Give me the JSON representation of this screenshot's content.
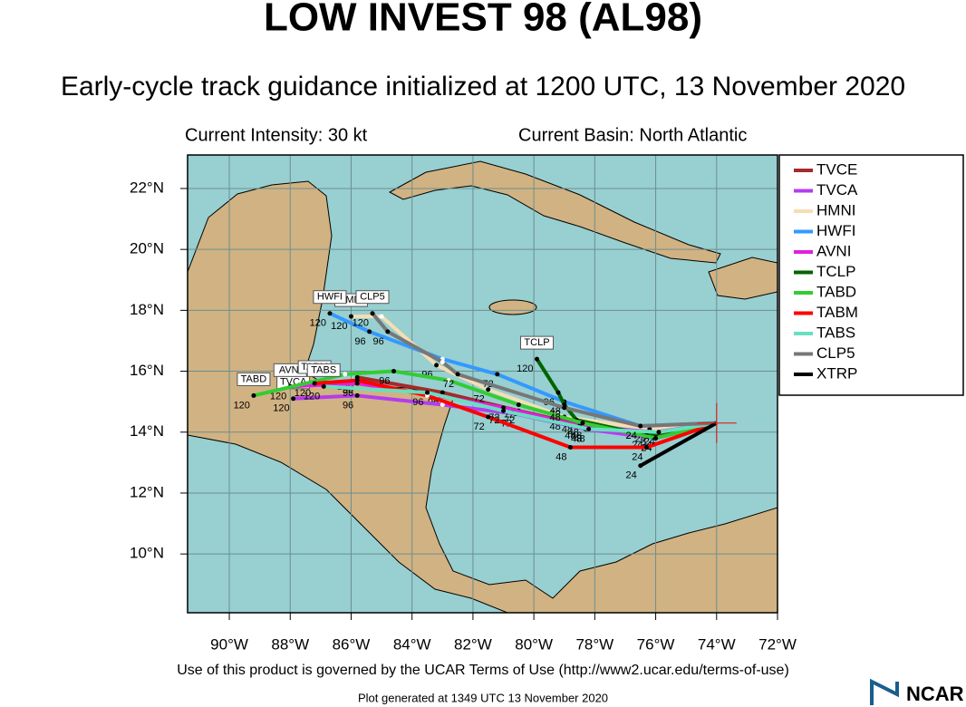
{
  "chart_data": {
    "type": "map",
    "title": "LOW INVEST 98 (AL98)",
    "subtitle": "Early-cycle track guidance initialized at 1200 UTC, 13 November 2020",
    "intensity_label": "Current Intensity: 30 kt",
    "basin_label": "Current Basin: North Atlantic",
    "footer": "Use of this product is governed by the UCAR Terms of Use (http://www2.ucar.edu/terms-of-use)",
    "generated": "Plot generated at 1349 UTC   13 November 2020",
    "logo": "NCAR",
    "xlim": [
      -91.37,
      -72
    ],
    "ylim": [
      8.07,
      23.1
    ],
    "xticks": [
      {
        "value": -90,
        "label": "90°W"
      },
      {
        "value": -88,
        "label": "88°W"
      },
      {
        "value": -86,
        "label": "86°W"
      },
      {
        "value": -84,
        "label": "84°W"
      },
      {
        "value": -82,
        "label": "82°W"
      },
      {
        "value": -80,
        "label": "80°W"
      },
      {
        "value": -78,
        "label": "78°W"
      },
      {
        "value": -76,
        "label": "76°W"
      },
      {
        "value": -74,
        "label": "74°W"
      },
      {
        "value": -72,
        "label": "72°W"
      }
    ],
    "yticks": [
      {
        "value": 10,
        "label": "10°N"
      },
      {
        "value": 12,
        "label": "12°N"
      },
      {
        "value": 14,
        "label": "14°N"
      },
      {
        "value": 16,
        "label": "16°N"
      },
      {
        "value": 18,
        "label": "18°N"
      },
      {
        "value": 20,
        "label": "20°N"
      },
      {
        "value": 22,
        "label": "22°N"
      }
    ],
    "grid": true,
    "position": {
      "lon": -74.0,
      "lat": 14.3,
      "color": "#e02020"
    },
    "series": [
      {
        "name": "TVCE",
        "color": "#a52a2a",
        "end_label": false,
        "lon": [
          -74,
          -76,
          -78.3,
          -80.5,
          -83,
          -85.8
        ],
        "lat": [
          14.3,
          13.9,
          14.2,
          14.7,
          15.3,
          15.8
        ],
        "labels": [
          null,
          24,
          48,
          72,
          96,
          120
        ]
      },
      {
        "name": "TVCA",
        "color": "#b43cf0",
        "end_label": true,
        "lon": [
          -74,
          -76,
          -78.3,
          -80.6,
          -83,
          -85.8,
          -87.9
        ],
        "lat": [
          14.3,
          13.8,
          14.1,
          14.6,
          14.9,
          15.2,
          15.1
        ],
        "labels": [
          null,
          24,
          48,
          72,
          null,
          96,
          120
        ]
      },
      {
        "name": "HMNI",
        "color": "#f5deb3",
        "end_label": true,
        "lon": [
          -74,
          -76.2,
          -79,
          -81.5,
          -83.2,
          -85,
          -86
        ],
        "lat": [
          14.3,
          14.1,
          14.5,
          15.4,
          16.2,
          17.8,
          17.8
        ],
        "labels": [
          null,
          24,
          48,
          72,
          96,
          null,
          120
        ]
      },
      {
        "name": "HWFI",
        "color": "#3399ff",
        "end_label": true,
        "lon": [
          -74,
          -76.5,
          -79,
          -81.2,
          -83,
          -85.4,
          -86.7
        ],
        "lat": [
          14.3,
          14.2,
          15,
          15.9,
          16.4,
          17.3,
          17.9
        ],
        "labels": [
          null,
          24,
          48,
          72,
          null,
          96,
          120
        ]
      },
      {
        "name": "AVNI",
        "color": "#e020e0",
        "end_label": true,
        "lon": [
          -74,
          -76,
          -78.5,
          -81,
          -83.2,
          -85.8,
          -88
        ],
        "lat": [
          14.3,
          14,
          14.2,
          14.8,
          15.2,
          15.6,
          15.5
        ],
        "labels": [
          null,
          null,
          48,
          72,
          null,
          96,
          120
        ]
      },
      {
        "name": "TCLP",
        "color": "#006400",
        "end_label": true,
        "lon": [
          -74,
          -76.3,
          -78.6,
          -79,
          -79.2,
          -79.9
        ],
        "lat": [
          14.3,
          13.9,
          14.4,
          14.9,
          15.3,
          16.4
        ],
        "labels": [
          null,
          24,
          48,
          72,
          96,
          120
        ]
      },
      {
        "name": "TABD",
        "color": "#33cc33",
        "end_label": true,
        "lon": [
          -74,
          -76,
          -78.4,
          -80.5,
          -82.8,
          -84.6,
          -86.2,
          -89.2
        ],
        "lat": [
          14.3,
          13.8,
          14.3,
          14.9,
          15.7,
          16,
          15.9,
          15.2
        ],
        "labels": [
          null,
          24,
          48,
          72,
          null,
          96,
          null,
          120
        ]
      },
      {
        "name": "TABM",
        "color": "#ff0000",
        "end_label": true,
        "lon": [
          -74,
          -76.3,
          -78.8,
          -81.5,
          -83.5,
          -85.8,
          -87.2
        ],
        "lat": [
          14.3,
          13.5,
          13.5,
          14.5,
          15.2,
          15.7,
          15.6
        ],
        "labels": [
          null,
          24,
          48,
          72,
          null,
          96,
          120
        ]
      },
      {
        "name": "TABS",
        "color": "#66e0c0",
        "end_label": true,
        "lon": [
          -74,
          -75.9,
          -78.2,
          -81,
          -83.5,
          -86.9
        ],
        "lat": [
          14.3,
          14,
          14.1,
          14.7,
          15.3,
          15.5
        ],
        "labels": [
          null,
          24,
          48,
          72,
          96,
          120
        ]
      },
      {
        "name": "CLP5",
        "color": "#777777",
        "end_label": true,
        "lon": [
          -74,
          -76.5,
          -79,
          -82.5,
          -83,
          -84.8,
          -85.3
        ],
        "lat": [
          14.3,
          14.2,
          14.8,
          15.9,
          16.3,
          17.3,
          17.9
        ],
        "labels": [
          null,
          24,
          48,
          72,
          null,
          96,
          120
        ]
      },
      {
        "name": "XTRP",
        "color": "#000000",
        "end_label": false,
        "lon": [
          -74,
          -76.5
        ],
        "lat": [
          14.3,
          12.9
        ],
        "labels": [
          null,
          24
        ]
      }
    ]
  }
}
